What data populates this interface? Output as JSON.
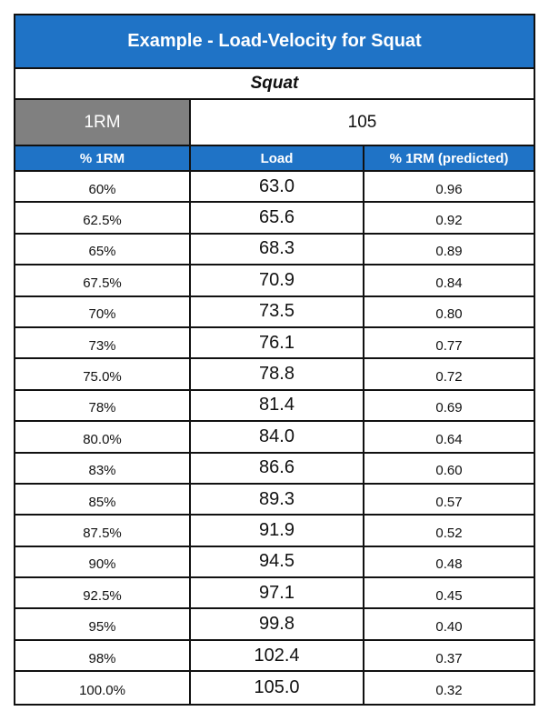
{
  "title": "Example - Load-Velocity for Squat",
  "exercise": "Squat",
  "one_rm": {
    "label": "1RM",
    "value": "105"
  },
  "columns": [
    "% 1RM",
    "Load",
    "% 1RM (predicted)"
  ],
  "rows": [
    {
      "pct": "60%",
      "load": "63.0",
      "predicted": "0.96"
    },
    {
      "pct": "62.5%",
      "load": "65.6",
      "predicted": "0.92"
    },
    {
      "pct": "65%",
      "load": "68.3",
      "predicted": "0.89"
    },
    {
      "pct": "67.5%",
      "load": "70.9",
      "predicted": "0.84"
    },
    {
      "pct": "70%",
      "load": "73.5",
      "predicted": "0.80"
    },
    {
      "pct": "73%",
      "load": "76.1",
      "predicted": "0.77"
    },
    {
      "pct": "75.0%",
      "load": "78.8",
      "predicted": "0.72"
    },
    {
      "pct": "78%",
      "load": "81.4",
      "predicted": "0.69"
    },
    {
      "pct": "80.0%",
      "load": "84.0",
      "predicted": "0.64"
    },
    {
      "pct": "83%",
      "load": "86.6",
      "predicted": "0.60"
    },
    {
      "pct": "85%",
      "load": "89.3",
      "predicted": "0.57"
    },
    {
      "pct": "87.5%",
      "load": "91.9",
      "predicted": "0.52"
    },
    {
      "pct": "90%",
      "load": "94.5",
      "predicted": "0.48"
    },
    {
      "pct": "92.5%",
      "load": "97.1",
      "predicted": "0.45"
    },
    {
      "pct": "95%",
      "load": "99.8",
      "predicted": "0.40"
    },
    {
      "pct": "98%",
      "load": "102.4",
      "predicted": "0.37"
    },
    {
      "pct": "100.0%",
      "load": "105.0",
      "predicted": "0.32"
    }
  ],
  "colors": {
    "header_blue": "#1f73c6",
    "rm_label_gray": "#808080",
    "border": "#111111"
  }
}
